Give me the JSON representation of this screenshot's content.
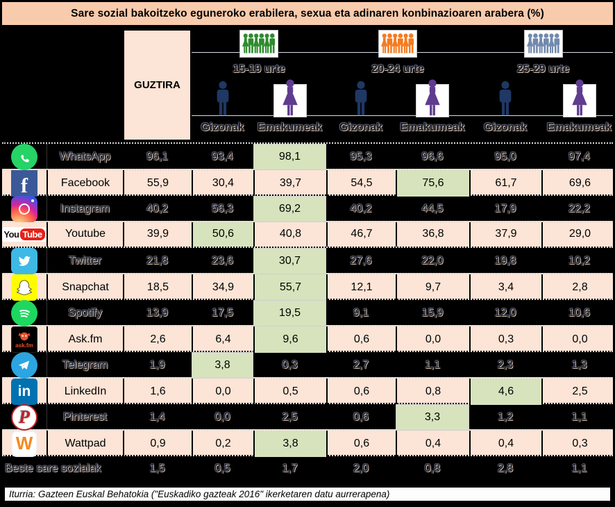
{
  "title": "Sare sozial bakoitzeko eguneroko erabilera, sexua eta adinaren konbinazioaren arabera (%)",
  "header": {
    "guztira_label": "GUZTIRA",
    "age_groups": [
      {
        "label": "15-19 urte",
        "icon": "crowd-green-icon"
      },
      {
        "label": "20-24 urte",
        "icon": "crowd-orange-icon"
      },
      {
        "label": "25-29 urte",
        "icon": "crowd-blue-icon"
      }
    ],
    "gender_labels": {
      "male": "Gizonak",
      "female": "Emakumeak"
    }
  },
  "chart_data": {
    "type": "table",
    "title": "Sare sozial bakoitzeko eguneroko erabilera, sexua eta adinaren konbinazioaren arabera (%)",
    "columns": [
      "GUZTIRA",
      "15-19 Gizonak",
      "15-19 Emakumeak",
      "20-24 Gizonak",
      "20-24 Emakumeak",
      "25-29 Gizonak",
      "25-29 Emakumeak"
    ],
    "rows": [
      {
        "name": "WhatsApp",
        "icon": "whatsapp-icon",
        "values": [
          "96,1",
          "93,4",
          "98,1",
          "95,3",
          "96,6",
          "95,0",
          "97,4"
        ],
        "highlight": 2
      },
      {
        "name": "Facebook",
        "icon": "facebook-icon",
        "values": [
          "55,9",
          "30,4",
          "39,7",
          "54,5",
          "75,6",
          "61,7",
          "69,6"
        ],
        "highlight": 4
      },
      {
        "name": "Instagram",
        "icon": "instagram-icon",
        "values": [
          "40,2",
          "56,3",
          "69,2",
          "40,2",
          "44,5",
          "17,9",
          "22,2"
        ],
        "highlight": 2
      },
      {
        "name": "Youtube",
        "icon": "youtube-icon",
        "values": [
          "39,9",
          "50,6",
          "40,8",
          "46,7",
          "36,8",
          "37,9",
          "29,0"
        ],
        "highlight": 1
      },
      {
        "name": "Twitter",
        "icon": "twitter-icon",
        "values": [
          "21,8",
          "23,6",
          "30,7",
          "27,6",
          "22,0",
          "19,8",
          "10,2"
        ],
        "highlight": 2
      },
      {
        "name": "Snapchat",
        "icon": "snapchat-icon",
        "values": [
          "18,5",
          "34,9",
          "55,7",
          "12,1",
          "9,7",
          "3,4",
          "2,8"
        ],
        "highlight": 2
      },
      {
        "name": "Spotify",
        "icon": "spotify-icon",
        "values": [
          "13,9",
          "17,5",
          "19,5",
          "9,1",
          "15,9",
          "12,0",
          "10,6"
        ],
        "highlight": 2
      },
      {
        "name": "Ask.fm",
        "icon": "askfm-icon",
        "values": [
          "2,6",
          "6,4",
          "9,6",
          "0,6",
          "0,0",
          "0,3",
          "0,0"
        ],
        "highlight": 2
      },
      {
        "name": "Telegram",
        "icon": "telegram-icon",
        "values": [
          "1,9",
          "3,8",
          "0,3",
          "2,7",
          "1,1",
          "2,3",
          "1,3"
        ],
        "highlight": 1
      },
      {
        "name": "LinkedIn",
        "icon": "linkedin-icon",
        "values": [
          "1,6",
          "0,0",
          "0,5",
          "0,6",
          "0,8",
          "4,6",
          "2,5"
        ],
        "highlight": 5
      },
      {
        "name": "Pinterest",
        "icon": "pinterest-icon",
        "values": [
          "1,4",
          "0,0",
          "2,5",
          "0,6",
          "3,3",
          "1,2",
          "1,1"
        ],
        "highlight": 4
      },
      {
        "name": "Wattpad",
        "icon": "wattpad-icon",
        "values": [
          "0,9",
          "0,2",
          "3,8",
          "0,6",
          "0,4",
          "0,4",
          "0,3"
        ],
        "highlight": 2
      },
      {
        "name": "Beste sare sozialak",
        "icon": null,
        "values": [
          "1,5",
          "0,5",
          "1,7",
          "2,0",
          "0,8",
          "2,8",
          "1,1"
        ],
        "highlight": -1
      }
    ]
  },
  "footer": {
    "source": "Iturria: Gazteen Euskal Behatokia (\"Euskadiko gazteak 2016\" ikerketaren datu aurrerapena)"
  },
  "colors": {
    "title_bg": "#F8CBAD",
    "row_peach": "#FCE4D6",
    "row_dark": "#000000",
    "highlight_green": "#D6E3BC",
    "male_icon": "#1F3864",
    "female_icon": "#5F3C8F",
    "age_group_icon_colors": [
      "#2E8B2E",
      "#F47B20",
      "#7189AD"
    ]
  }
}
